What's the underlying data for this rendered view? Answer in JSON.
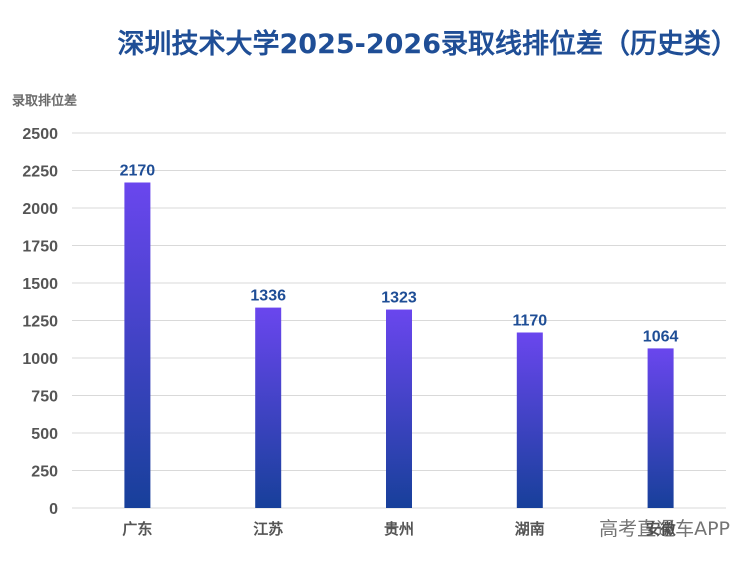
{
  "chart_data": {
    "type": "bar",
    "title": "深圳技术大学2025-2026录取线排位差（历史类）",
    "ylabel": "录取排位差",
    "xlabel": "",
    "categories": [
      "广东",
      "江苏",
      "贵州",
      "湖南",
      "安徽"
    ],
    "values": [
      2170,
      1336,
      1323,
      1170,
      1064
    ],
    "ylim": [
      0,
      2500
    ],
    "yticks": [
      0,
      250,
      500,
      750,
      1000,
      1250,
      1500,
      1750,
      2000,
      2250,
      2500
    ],
    "grid": true,
    "legend": "none",
    "colors": {
      "bar_top": "#6a46ee",
      "bar_bottom": "#17409a",
      "title": "#1f4e96",
      "data_label": "#1f4e96"
    }
  },
  "watermark": "高考直通车APP"
}
